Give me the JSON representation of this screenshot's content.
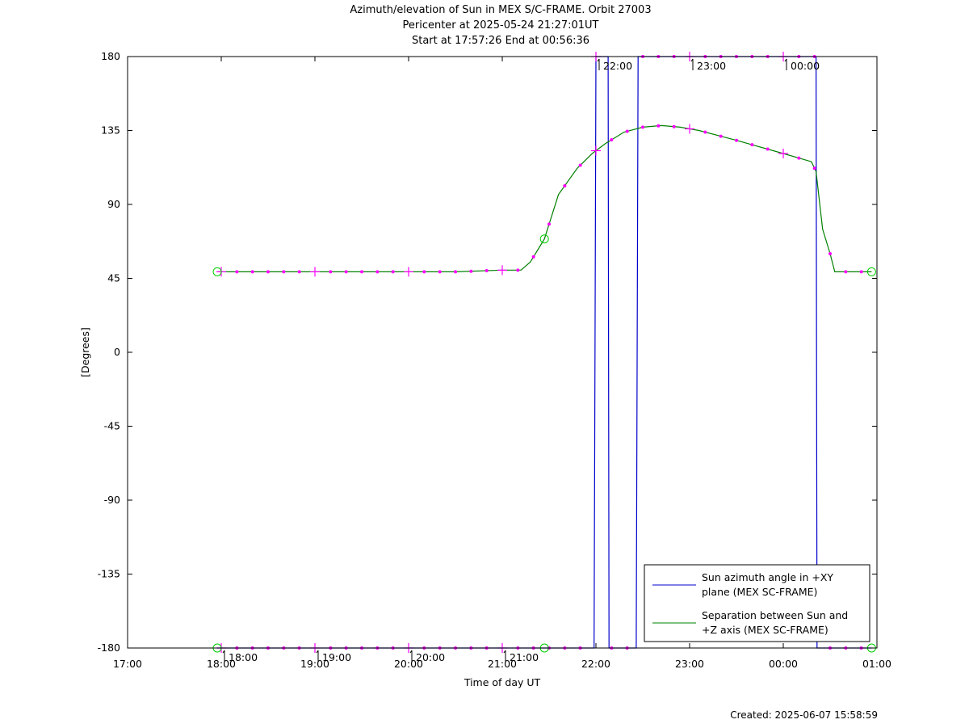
{
  "title_lines": [
    "Azimuth/elevation of Sun in MEX S/C-FRAME.  Orbit 27003",
    "Pericenter at 2025-05-24 21:27:01UT",
    "Start at 17:57:26 End at 00:56:36"
  ],
  "created": "Created: 2025-06-07 15:58:59",
  "chart_data": {
    "type": "line",
    "xlabel": "Time of day UT",
    "ylabel": "[Degrees]",
    "xlim": [
      17.0,
      25.0
    ],
    "ylim": [
      -180,
      180
    ],
    "x_ticks": [
      17,
      18,
      19,
      20,
      21,
      22,
      23,
      24,
      25
    ],
    "x_tick_labels": [
      "17:00",
      "18:00",
      "19:00",
      "20:00",
      "21:00",
      "22:00",
      "23:00",
      "00:00",
      "01:00"
    ],
    "y_ticks": [
      -180,
      -135,
      -90,
      -45,
      0,
      45,
      90,
      135,
      180
    ],
    "y_tick_labels": [
      "-180",
      "-135",
      "-90",
      "-45",
      "0",
      "45",
      "90",
      "135",
      "180"
    ],
    "hour_markers": [
      {
        "x": 18.0,
        "y": -180,
        "label": "18:00"
      },
      {
        "x": 19.0,
        "y": -180,
        "label": "19:00"
      },
      {
        "x": 20.0,
        "y": -180,
        "label": "20:00"
      },
      {
        "x": 21.0,
        "y": -180,
        "label": "21:00"
      },
      {
        "x": 22.0,
        "y": 180,
        "label": "22:00"
      },
      {
        "x": 23.0,
        "y": 180,
        "label": "23:00"
      },
      {
        "x": 24.0,
        "y": 180,
        "label": "00:00"
      }
    ],
    "legend_position": "bottom-right",
    "series": [
      {
        "name": "Sun azimuth angle in +XY plane (MEX SC-FRAME)",
        "color": "#0000cc",
        "x": [
          17.957,
          21.98,
          22.0,
          22.13,
          22.14,
          22.43,
          22.45,
          24.35,
          24.36,
          24.943
        ],
        "y": [
          -180,
          -180,
          180,
          180,
          -180,
          -180,
          180,
          180,
          -180,
          -180
        ]
      },
      {
        "name": "Separation between Sun and +Z axis (MEX SC-FRAME)",
        "color": "#008000",
        "x": [
          17.957,
          18.5,
          19.5,
          20.5,
          21.0,
          21.2,
          21.3,
          21.45,
          21.6,
          21.8,
          21.96,
          22.1,
          22.3,
          22.5,
          22.7,
          22.9,
          23.1,
          23.5,
          24.0,
          24.3,
          24.35,
          24.42,
          24.5,
          24.55,
          24.6,
          24.943
        ],
        "y": [
          49,
          49,
          49,
          49,
          50,
          50,
          55,
          69,
          96,
          112,
          121,
          127,
          134,
          137,
          138,
          137,
          135,
          129,
          121,
          116,
          110,
          75,
          60,
          49,
          49,
          49
        ]
      }
    ],
    "legend_labels": [
      [
        "Sun azimuth angle in +XY",
        "plane (MEX SC-FRAME)"
      ],
      [
        "Separation between Sun and",
        "+Z axis (MEX SC-FRAME)"
      ]
    ],
    "marker_color": "#ff00ff",
    "endpoint_marker_color": "#00cc00"
  }
}
